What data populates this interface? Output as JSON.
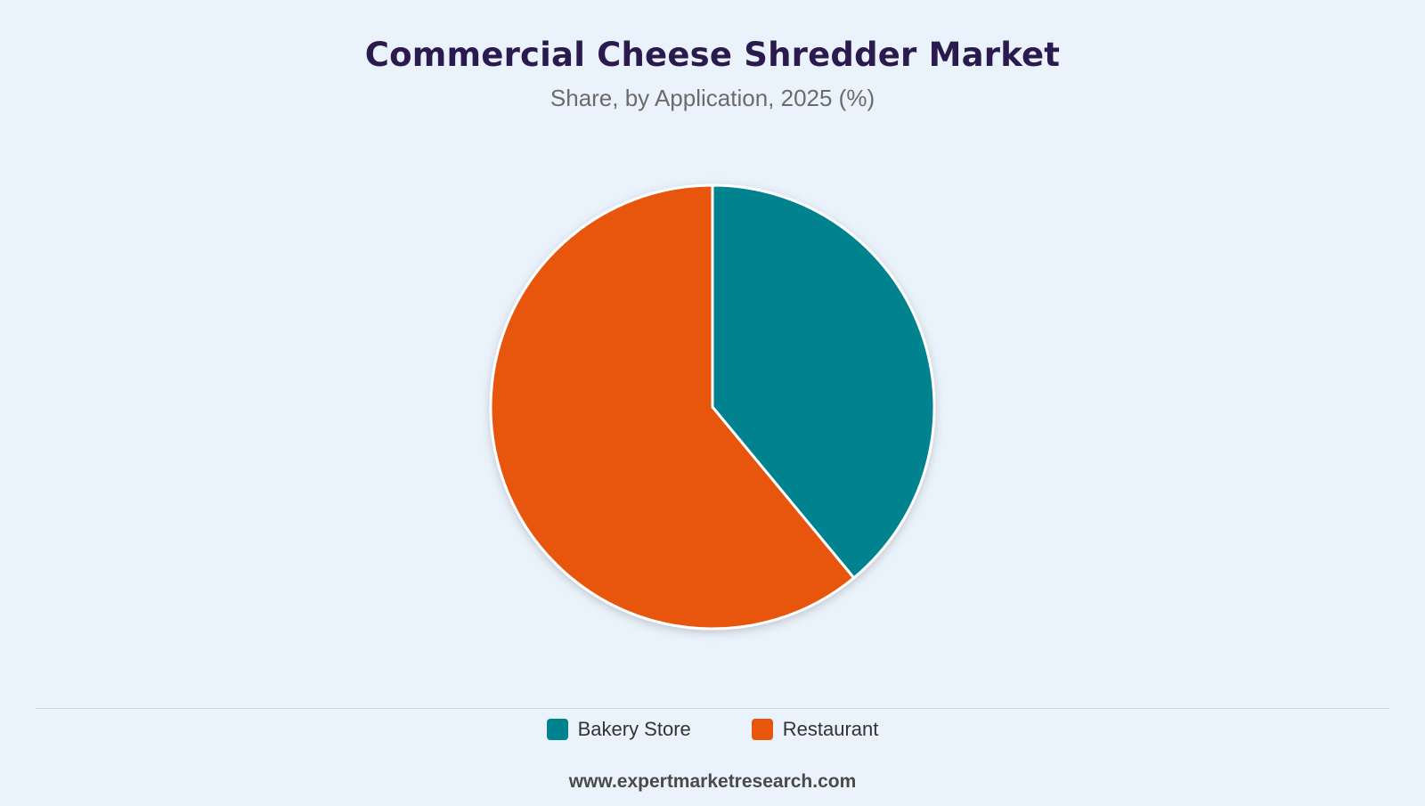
{
  "title": "Commercial Cheese Shredder Market",
  "subtitle": "Share, by Application, 2025 (%)",
  "source": "www.expertmarketresearch.com",
  "chart_data": {
    "type": "pie",
    "title": "Commercial Cheese Shredder Market",
    "subtitle": "Share, by Application, 2025 (%)",
    "categories": [
      "Bakery Store",
      "Restaurant"
    ],
    "values": [
      39,
      61
    ],
    "colors": [
      "#00838f",
      "#e8560e"
    ],
    "legend": "bottom",
    "slice_border_color": "#ffffff"
  }
}
